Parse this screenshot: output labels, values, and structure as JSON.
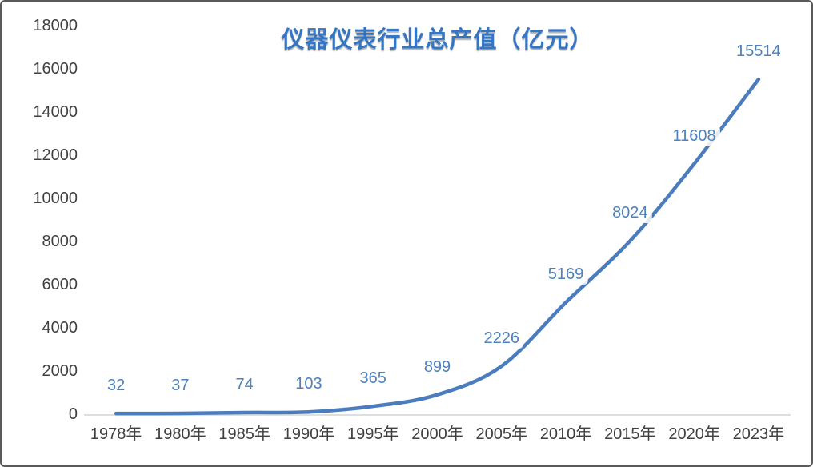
{
  "chart_data": {
    "type": "line",
    "title": "仪器仪表行业总产值（亿元）",
    "categories": [
      "1978年",
      "1980年",
      "1985年",
      "1990年",
      "1995年",
      "2000年",
      "2005年",
      "2010年",
      "2015年",
      "2020年",
      "2023年"
    ],
    "values": [
      32,
      37,
      74,
      103,
      365,
      899,
      2226,
      5169,
      8024,
      11608,
      15514
    ],
    "series_name": "仪器仪表行业总产值",
    "xlabel": "",
    "ylabel": "",
    "ylim": [
      0,
      18000
    ],
    "ytick_step": 2000,
    "ytick_labels": [
      "0",
      "2000",
      "4000",
      "6000",
      "8000",
      "10000",
      "12000",
      "14000",
      "16000",
      "18000"
    ],
    "grid": false,
    "legend": "none",
    "smooth": true,
    "data_labels_position": "above",
    "colors": {
      "line": "#4b7dbe",
      "data_label": "#4e81bd",
      "title": "#3476c4",
      "axis_text": "#404040",
      "axis_line": "#d9d9d9",
      "frame_border": "#5a5a5a",
      "background": "#ffffff"
    }
  }
}
